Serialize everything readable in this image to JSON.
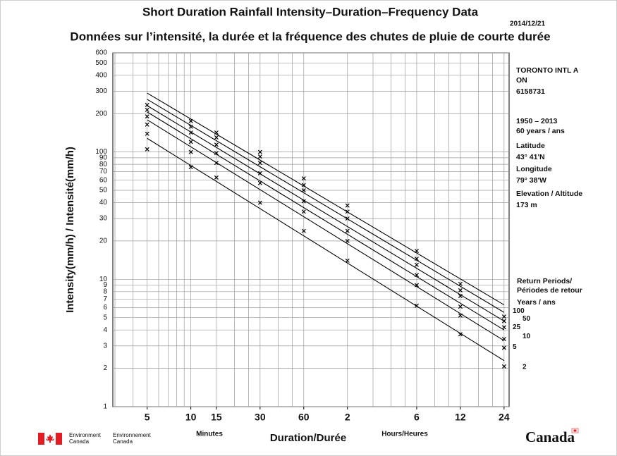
{
  "chart_data": {
    "type": "loglog-idf",
    "title": "Short Duration Rainfall Intensity–Duration–Frequency Data",
    "subtitle": "Données sur l’intensité, la durée et la fréquence des chutes de pluie de courte durée",
    "date": "2014/12/21",
    "ylabel": "Intensity(mm/h) / Intensité(mm/h)",
    "xlabel": "Duration/Durée",
    "xunit_minutes": "Minutes",
    "xunit_hours": "Hours/Heures",
    "x": [
      5,
      10,
      15,
      30,
      60,
      120,
      360,
      720,
      1440
    ],
    "xlim": [
      2.9,
      1560
    ],
    "xticks": [
      5,
      10,
      15,
      30,
      60,
      {
        "value": 120,
        "label": "2"
      },
      {
        "value": 360,
        "label": "6"
      },
      {
        "value": 720,
        "label": "12"
      },
      {
        "value": 1440,
        "label": "24"
      }
    ],
    "xgrid": [
      3,
      4,
      5,
      6,
      7,
      8,
      9,
      10,
      15,
      20,
      25,
      30,
      40,
      50,
      60,
      120,
      180,
      240,
      300,
      360,
      480,
      600,
      720,
      960,
      1200,
      1440
    ],
    "ylim": [
      1,
      600
    ],
    "yticks": [
      1,
      2,
      3,
      4,
      5,
      6,
      7,
      8,
      9,
      10,
      20,
      30,
      40,
      50,
      60,
      70,
      80,
      90,
      100,
      200,
      300,
      400,
      500,
      600
    ],
    "log_scale": true,
    "grid": true,
    "fit_x": [
      5,
      1440
    ],
    "series": [
      {
        "name": "2",
        "color": "#000000",
        "values": [
          105,
          76,
          63,
          40,
          24,
          14,
          6.2,
          3.7,
          2.07
        ],
        "fit": [
          128,
          2.3
        ]
      },
      {
        "name": "5",
        "color": "#000000",
        "values": [
          139,
          100,
          82,
          57,
          34,
          20,
          9,
          5.2,
          2.9
        ],
        "fit": [
          179,
          3.3
        ]
      },
      {
        "name": "10",
        "color": "#000000",
        "values": [
          164,
          120,
          98,
          68,
          41,
          24,
          10.8,
          6.1,
          3.4
        ],
        "fit": [
          206,
          4
        ]
      },
      {
        "name": "25",
        "color": "#000000",
        "values": [
          190,
          142,
          114,
          82,
          50,
          30,
          13,
          7.4,
          4.2
        ],
        "fit": [
          231,
          4.7
        ]
      },
      {
        "name": "50",
        "color": "#000000",
        "values": [
          214,
          158,
          130,
          92,
          55,
          34,
          14.5,
          8.2,
          4.7
        ],
        "fit": [
          259,
          5.5
        ]
      },
      {
        "name": "100",
        "color": "#000000",
        "values": [
          234,
          175,
          142,
          100,
          62,
          38,
          16.7,
          9.2,
          5.1
        ],
        "fit": [
          290,
          6.3
        ]
      }
    ],
    "station_info": [
      "TORONTO INTL A",
      "ON",
      "6158731",
      "1950 – 2013",
      "60 years / ans",
      "Latitude",
      "43°  41'N",
      "Longitude",
      "79° 38'W",
      "Elevation / Altitude",
      "173 m"
    ],
    "return_period_title": [
      "Return Periods/",
      "Périodes de retour",
      "Years / ans"
    ],
    "agency_en": [
      "Environment",
      "Canada"
    ],
    "agency_fr": [
      "Environnement",
      "Canada"
    ],
    "wordmark": "Canada"
  }
}
